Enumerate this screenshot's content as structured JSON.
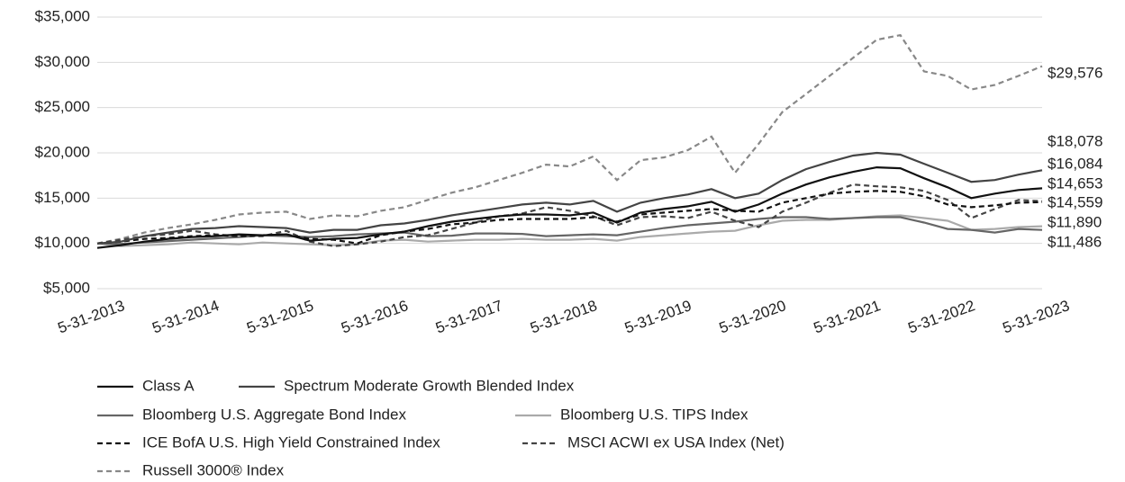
{
  "chart_data": {
    "type": "line",
    "categories": [
      "5-31-2013",
      null,
      null,
      null,
      "5-31-2014",
      null,
      null,
      null,
      "5-31-2015",
      null,
      null,
      null,
      "5-31-2016",
      null,
      null,
      null,
      "5-31-2017",
      null,
      null,
      null,
      "5-31-2018",
      null,
      null,
      null,
      "5-31-2019",
      null,
      null,
      null,
      "5-31-2020",
      null,
      null,
      null,
      "5-31-2021",
      null,
      null,
      null,
      "5-31-2022",
      null,
      null,
      null,
      "5-31-2023"
    ],
    "ylim": [
      5000,
      35000
    ],
    "yticks": [
      {
        "value": 5000,
        "label": "$5,000"
      },
      {
        "value": 10000,
        "label": "$10,000"
      },
      {
        "value": 15000,
        "label": "$15,000"
      },
      {
        "value": 20000,
        "label": "$20,000"
      },
      {
        "value": 25000,
        "label": "$25,000"
      },
      {
        "value": 30000,
        "label": "$30,000"
      },
      {
        "value": 35000,
        "label": "$35,000"
      }
    ],
    "grid": true,
    "series": [
      {
        "name": "Class A",
        "color": "#111111",
        "dashed": false,
        "values": [
          9500,
          9800,
          10200,
          10500,
          10700,
          10800,
          11000,
          10900,
          11000,
          10300,
          10500,
          10600,
          11000,
          11300,
          11900,
          12400,
          12700,
          13000,
          13200,
          13200,
          13100,
          13400,
          12300,
          13400,
          13800,
          14100,
          14600,
          13500,
          14300,
          15500,
          16500,
          17300,
          17900,
          18400,
          18300,
          17200,
          16200,
          15000,
          15500,
          15900,
          16084
        ],
        "value_labels": [
          null,
          null,
          null,
          null,
          null,
          null,
          null,
          null,
          null,
          null,
          null,
          null,
          null,
          null,
          null,
          null,
          null,
          null,
          null,
          null,
          null,
          null,
          null,
          null,
          null,
          null,
          null,
          null,
          null,
          null,
          null,
          null,
          null,
          null,
          null,
          null,
          null,
          null,
          null,
          null,
          "$16,084"
        ]
      },
      {
        "name": "Spectrum Moderate Growth Blended Index",
        "color": "#444444",
        "dashed": false,
        "values": [
          10000,
          10200,
          10800,
          11200,
          11600,
          11700,
          11900,
          11800,
          11700,
          11200,
          11500,
          11500,
          12000,
          12200,
          12600,
          13100,
          13500,
          13900,
          14300,
          14500,
          14300,
          14700,
          13500,
          14500,
          15000,
          15400,
          16000,
          15000,
          15500,
          17000,
          18200,
          19000,
          19700,
          20000,
          19800,
          18800,
          17800,
          16800,
          17000,
          17600,
          18078
        ],
        "value_labels": [
          null,
          null,
          null,
          null,
          null,
          null,
          null,
          null,
          null,
          null,
          null,
          null,
          null,
          null,
          null,
          null,
          null,
          null,
          null,
          null,
          null,
          null,
          null,
          null,
          null,
          null,
          null,
          null,
          null,
          null,
          null,
          null,
          null,
          null,
          null,
          null,
          null,
          null,
          null,
          null,
          "$18,078"
        ]
      },
      {
        "name": "Bloomberg U.S. Aggregate Bond Index",
        "color": "#666666",
        "dashed": false,
        "values": [
          10000,
          9950,
          10100,
          10250,
          10400,
          10550,
          10700,
          10900,
          10800,
          10700,
          10800,
          11000,
          11100,
          11200,
          10800,
          10850,
          11100,
          11100,
          11050,
          10800,
          10900,
          11000,
          10900,
          11300,
          11700,
          12000,
          12200,
          12400,
          12700,
          12900,
          12900,
          12700,
          12800,
          12900,
          12900,
          12300,
          11600,
          11500,
          11200,
          11600,
          11486
        ],
        "value_labels": [
          null,
          null,
          null,
          null,
          null,
          null,
          null,
          null,
          null,
          null,
          null,
          null,
          null,
          null,
          null,
          null,
          null,
          null,
          null,
          null,
          null,
          null,
          null,
          null,
          null,
          null,
          null,
          null,
          null,
          null,
          null,
          null,
          null,
          null,
          null,
          null,
          null,
          null,
          null,
          null,
          "$11,486"
        ]
      },
      {
        "name": "Bloomberg U.S. TIPS Index",
        "color": "#aaaaaa",
        "dashed": false,
        "values": [
          10000,
          9700,
          9800,
          9900,
          10100,
          10000,
          9900,
          10100,
          10000,
          9900,
          9800,
          9900,
          10300,
          10400,
          10200,
          10300,
          10400,
          10400,
          10500,
          10400,
          10400,
          10500,
          10300,
          10700,
          10900,
          11100,
          11300,
          11400,
          12000,
          12500,
          12600,
          12600,
          12800,
          13000,
          13100,
          12800,
          12500,
          11500,
          11600,
          11800,
          11890
        ],
        "value_labels": [
          null,
          null,
          null,
          null,
          null,
          null,
          null,
          null,
          null,
          null,
          null,
          null,
          null,
          null,
          null,
          null,
          null,
          null,
          null,
          null,
          null,
          null,
          null,
          null,
          null,
          null,
          null,
          null,
          null,
          null,
          null,
          null,
          null,
          null,
          null,
          null,
          null,
          null,
          null,
          null,
          "$11,890"
        ]
      },
      {
        "name": "ICE BofA U.S. High Yield Constrained Index",
        "color": "#111111",
        "dashed": true,
        "values": [
          10000,
          10200,
          10500,
          10600,
          10800,
          10900,
          10800,
          10900,
          11000,
          10500,
          10400,
          10000,
          10900,
          11300,
          11600,
          12100,
          12300,
          12600,
          12700,
          12700,
          12700,
          12900,
          12400,
          13200,
          13400,
          13600,
          13800,
          13600,
          13500,
          14500,
          15000,
          15500,
          15700,
          15800,
          15700,
          15200,
          14300,
          14000,
          14200,
          14500,
          14559
        ],
        "value_labels": [
          null,
          null,
          null,
          null,
          null,
          null,
          null,
          null,
          null,
          null,
          null,
          null,
          null,
          null,
          null,
          null,
          null,
          null,
          null,
          null,
          null,
          null,
          null,
          null,
          null,
          null,
          null,
          null,
          null,
          null,
          null,
          null,
          null,
          null,
          null,
          null,
          null,
          null,
          null,
          null,
          "$14,559"
        ]
      },
      {
        "name": "MSCI ACWI ex USA Index (Net)",
        "color": "#444444",
        "dashed": true,
        "values": [
          10000,
          10400,
          10800,
          11000,
          11400,
          11000,
          10800,
          10800,
          11400,
          10200,
          9700,
          9900,
          10200,
          10700,
          10900,
          11600,
          12300,
          13000,
          13300,
          14000,
          13600,
          13000,
          12000,
          12900,
          13000,
          12800,
          13500,
          12500,
          11800,
          13500,
          14500,
          15600,
          16500,
          16300,
          16200,
          15800,
          14800,
          12800,
          13800,
          14800,
          14653
        ],
        "value_labels": [
          null,
          null,
          null,
          null,
          null,
          null,
          null,
          null,
          null,
          null,
          null,
          null,
          null,
          null,
          null,
          null,
          null,
          null,
          null,
          null,
          null,
          null,
          null,
          null,
          null,
          null,
          null,
          null,
          null,
          null,
          null,
          null,
          null,
          null,
          null,
          null,
          null,
          null,
          null,
          null,
          "$14,653"
        ]
      },
      {
        "name": "Russell 3000® Index",
        "color": "#888888",
        "dashed": true,
        "values": [
          10000,
          10500,
          11200,
          11700,
          12100,
          12600,
          13200,
          13400,
          13500,
          12700,
          13100,
          13000,
          13600,
          14000,
          14800,
          15600,
          16200,
          17000,
          17800,
          18700,
          18500,
          19600,
          17000,
          19200,
          19500,
          20300,
          21800,
          17800,
          21000,
          24500,
          26500,
          28500,
          30500,
          32500,
          33000,
          29000,
          28500,
          27000,
          27500,
          28500,
          29576
        ],
        "value_labels": [
          null,
          null,
          null,
          null,
          null,
          null,
          null,
          null,
          null,
          null,
          null,
          null,
          null,
          null,
          null,
          null,
          null,
          null,
          null,
          null,
          null,
          null,
          null,
          null,
          null,
          null,
          null,
          null,
          null,
          null,
          null,
          null,
          null,
          null,
          null,
          null,
          null,
          null,
          null,
          null,
          "$29,576"
        ]
      }
    ]
  }
}
